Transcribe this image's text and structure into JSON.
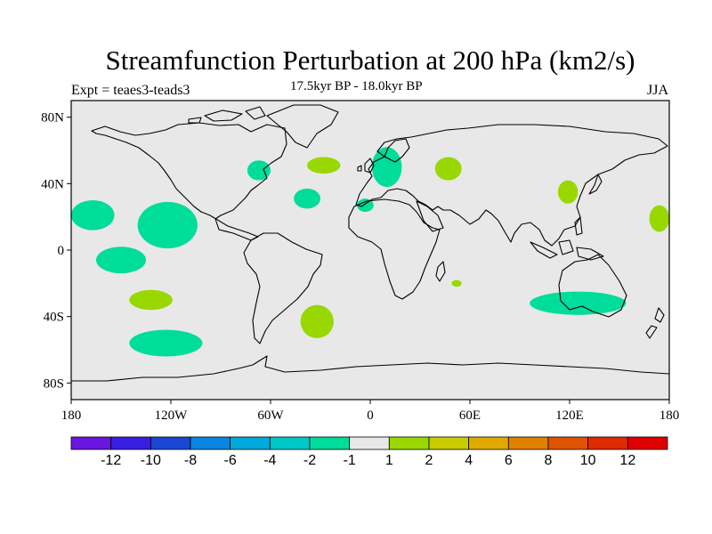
{
  "header": {
    "title": "Streamfunction Perturbation at 200 hPa (km2/s)",
    "experiment": "Expt = teaes3-teads3",
    "subtitle": "17.5kyr BP - 18.0kyr BP",
    "season": "JJA"
  },
  "map": {
    "projection": "cylindrical-equidistant",
    "lon_range": [
      -180,
      180
    ],
    "lat_range": [
      -90,
      90
    ],
    "lat_ticks": [
      {
        "value": 80,
        "label": "80N"
      },
      {
        "value": 40,
        "label": "40N"
      },
      {
        "value": 0,
        "label": "0"
      },
      {
        "value": -40,
        "label": "40S"
      },
      {
        "value": -80,
        "label": "80S"
      }
    ],
    "lon_ticks": [
      {
        "value": -180,
        "label": "180"
      },
      {
        "value": -120,
        "label": "120W"
      },
      {
        "value": -60,
        "label": "60W"
      },
      {
        "value": 0,
        "label": "0"
      },
      {
        "value": 60,
        "label": "60E"
      },
      {
        "value": 120,
        "label": "120E"
      },
      {
        "value": 180,
        "label": "180"
      }
    ],
    "background_color": "#e8e8e8",
    "colors": {
      "negative_1_2": "#00dc9a",
      "positive_1_2": "#98d800"
    },
    "anomalies": [
      {
        "name": "pacific-ne-east",
        "sign": "negative",
        "lon": -122,
        "lat": 15,
        "rlon": 18,
        "rlat": 14
      },
      {
        "name": "dateline-ne",
        "sign": "negative",
        "lon": -167,
        "lat": 21,
        "rlon": 13,
        "rlat": 9
      },
      {
        "name": "tropical-south-pacific",
        "sign": "negative",
        "lon": -150,
        "lat": -6,
        "rlon": 15,
        "rlat": 8
      },
      {
        "name": "south-pacific-midlat",
        "sign": "positive",
        "lon": -132,
        "lat": -30,
        "rlon": 13,
        "rlat": 6
      },
      {
        "name": "south-pacific-highlat",
        "sign": "negative",
        "lon": -123,
        "lat": -56,
        "rlon": 22,
        "rlat": 8
      },
      {
        "name": "north-america-east",
        "sign": "negative",
        "lon": -67,
        "lat": 48,
        "rlon": 7,
        "rlat": 6
      },
      {
        "name": "north-atlantic-central",
        "sign": "positive",
        "lon": -28,
        "lat": 51,
        "rlon": 10,
        "rlat": 5
      },
      {
        "name": "atlantic-subtropical",
        "sign": "negative",
        "lon": -38,
        "lat": 31,
        "rlon": 8,
        "rlat": 6
      },
      {
        "name": "south-atlantic",
        "sign": "positive",
        "lon": -32,
        "lat": -43,
        "rlon": 10,
        "rlat": 10
      },
      {
        "name": "north-africa-west",
        "sign": "negative",
        "lon": -3,
        "lat": 27,
        "rlon": 5,
        "rlat": 4
      },
      {
        "name": "northern-europe",
        "sign": "negative",
        "lon": 10,
        "lat": 50,
        "rlon": 9,
        "rlat": 12
      },
      {
        "name": "eastern-europe",
        "sign": "positive",
        "lon": 47,
        "lat": 49,
        "rlon": 8,
        "rlat": 7
      },
      {
        "name": "madagascar",
        "sign": "positive",
        "lon": 52,
        "lat": -20,
        "rlon": 3,
        "rlat": 2
      },
      {
        "name": "east-asia",
        "sign": "positive",
        "lon": 119,
        "lat": 35,
        "rlon": 6,
        "rlat": 7
      },
      {
        "name": "southern-indian-australia",
        "sign": "negative",
        "lon": 125,
        "lat": -32,
        "rlon": 29,
        "rlat": 7
      },
      {
        "name": "west-pacific",
        "sign": "positive",
        "lon": 174,
        "lat": 19,
        "rlon": 6,
        "rlat": 8
      }
    ]
  },
  "colorbar": {
    "colors": [
      "#6a16e0",
      "#3a1ee0",
      "#1c46d4",
      "#0a86e0",
      "#00aadc",
      "#00c8c8",
      "#00dc9a",
      "#e8e8e8",
      "#98d800",
      "#c8cc00",
      "#e0aa00",
      "#e08200",
      "#e05400",
      "#e02a00",
      "#e00000"
    ],
    "labels": [
      "-12",
      "-10",
      "-8",
      "-6",
      "-4",
      "-2",
      "-1",
      "1",
      "2",
      "4",
      "6",
      "8",
      "10",
      "12"
    ]
  }
}
